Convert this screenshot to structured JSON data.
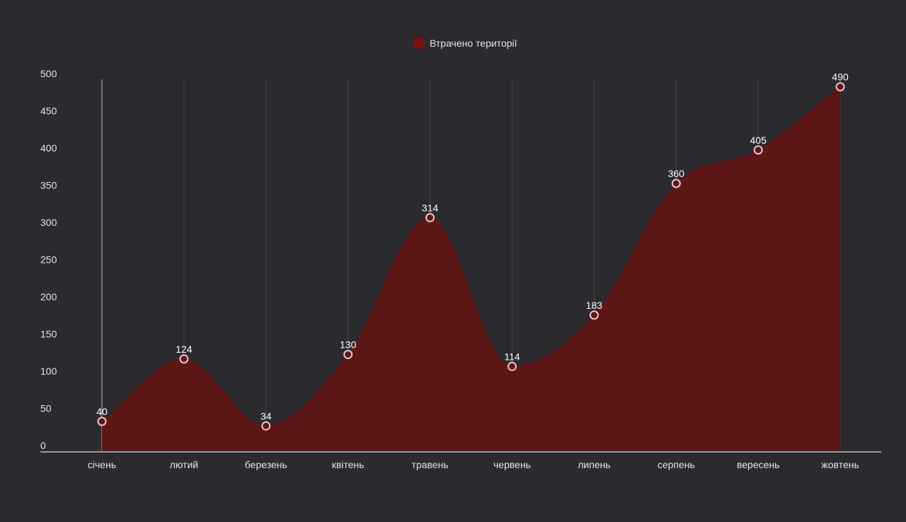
{
  "chart_data": {
    "type": "area",
    "categories": [
      "січень",
      "лютий",
      "березень",
      "квітень",
      "травень",
      "червень",
      "липень",
      "серпень",
      "вересень",
      "жовтень"
    ],
    "series": [
      {
        "name": "Втрачено території",
        "values": [
          40,
          124,
          34,
          130,
          314,
          114,
          183,
          360,
          405,
          490
        ],
        "color": "#5e1717"
      }
    ],
    "legend": {
      "label": "Втрачено території",
      "color": "#7d1010",
      "position": "top"
    },
    "ylim": [
      0,
      500
    ],
    "yticks": [
      0,
      50,
      100,
      150,
      200,
      250,
      300,
      350,
      400,
      450,
      500
    ],
    "grid": "vertical",
    "data_labels": true,
    "colors": {
      "background": "#2a2a2f",
      "text": "#e6e6e6",
      "axis": "#bfbfc4",
      "gridline": "#45454c",
      "marker_stroke": "#e8c9c9"
    }
  }
}
